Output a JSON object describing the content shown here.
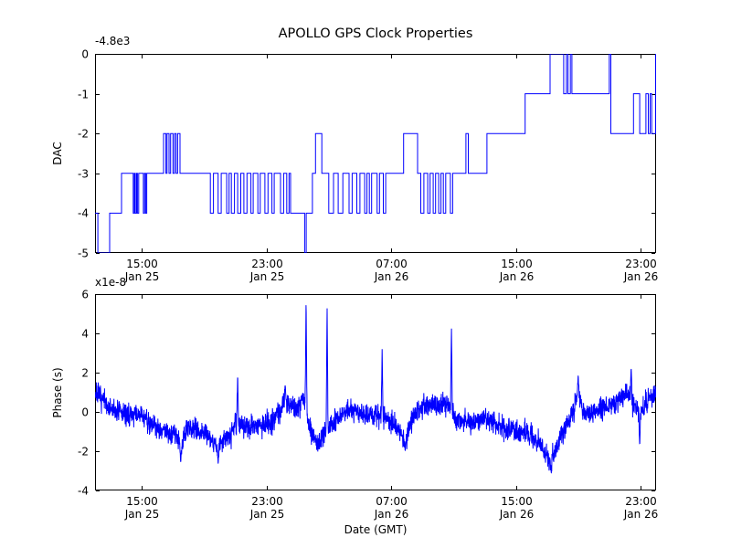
{
  "figure": {
    "background_color": "#ffffff",
    "axis_color": "#000000",
    "line_color": "#0000ff"
  },
  "chart_data": [
    {
      "id": "dac",
      "type": "line",
      "line_style": "step-post",
      "title": "APOLLO GPS Clock Properties",
      "ylabel": "DAC",
      "offset_text": "-4.8e3",
      "xlim": [
        0,
        36
      ],
      "ylim": [
        -5,
        0
      ],
      "grid": "off",
      "legend": "none",
      "yticks": [
        0,
        -1,
        -2,
        -3,
        -4,
        -5
      ],
      "xticks": [
        {
          "t": 3,
          "line1": "15:00",
          "line2": "Jan 25"
        },
        {
          "t": 11,
          "line1": "23:00",
          "line2": "Jan 25"
        },
        {
          "t": 19,
          "line1": "07:00",
          "line2": "Jan 26"
        },
        {
          "t": 27,
          "line1": "15:00",
          "line2": "Jan 26"
        },
        {
          "t": 35,
          "line1": "23:00",
          "line2": "Jan 26"
        }
      ],
      "x_unit": "hours since Jan 25 12:00 GMT",
      "steps": [
        [
          0,
          -4
        ],
        [
          0.18,
          -5
        ],
        [
          0.94,
          -4
        ],
        [
          1.7,
          -3
        ],
        [
          2.45,
          -4
        ],
        [
          2.52,
          -3
        ],
        [
          2.58,
          -4
        ],
        [
          2.66,
          -3
        ],
        [
          2.72,
          -4
        ],
        [
          2.8,
          -3
        ],
        [
          3.1,
          -4
        ],
        [
          3.18,
          -3
        ],
        [
          3.25,
          -4
        ],
        [
          3.32,
          -3
        ],
        [
          4.4,
          -2
        ],
        [
          4.55,
          -3
        ],
        [
          4.62,
          -2
        ],
        [
          4.75,
          -3
        ],
        [
          4.85,
          -2
        ],
        [
          5.0,
          -3
        ],
        [
          5.1,
          -2
        ],
        [
          5.2,
          -3
        ],
        [
          5.3,
          -2
        ],
        [
          5.45,
          -3
        ],
        [
          7.4,
          -4
        ],
        [
          7.6,
          -3
        ],
        [
          7.9,
          -4
        ],
        [
          8.1,
          -3
        ],
        [
          8.45,
          -4
        ],
        [
          8.6,
          -3
        ],
        [
          8.75,
          -4
        ],
        [
          8.95,
          -3
        ],
        [
          9.15,
          -4
        ],
        [
          9.35,
          -3
        ],
        [
          9.55,
          -4
        ],
        [
          9.75,
          -3
        ],
        [
          10.0,
          -4
        ],
        [
          10.15,
          -3
        ],
        [
          10.45,
          -4
        ],
        [
          10.6,
          -3
        ],
        [
          10.9,
          -4
        ],
        [
          11.1,
          -3
        ],
        [
          11.35,
          -4
        ],
        [
          11.5,
          -3
        ],
        [
          11.9,
          -4
        ],
        [
          12.1,
          -3
        ],
        [
          12.3,
          -4
        ],
        [
          12.45,
          -3
        ],
        [
          12.55,
          -4
        ],
        [
          13.45,
          -5
        ],
        [
          13.55,
          -4
        ],
        [
          13.95,
          -3
        ],
        [
          14.15,
          -2
        ],
        [
          14.55,
          -3
        ],
        [
          15.0,
          -4
        ],
        [
          15.3,
          -3
        ],
        [
          15.6,
          -4
        ],
        [
          15.9,
          -3
        ],
        [
          16.3,
          -4
        ],
        [
          16.5,
          -3
        ],
        [
          16.8,
          -4
        ],
        [
          17.0,
          -3
        ],
        [
          17.3,
          -4
        ],
        [
          17.45,
          -3
        ],
        [
          17.6,
          -4
        ],
        [
          17.75,
          -3
        ],
        [
          18.1,
          -4
        ],
        [
          18.25,
          -3
        ],
        [
          18.5,
          -4
        ],
        [
          18.65,
          -3
        ],
        [
          19.8,
          -2
        ],
        [
          20.7,
          -3
        ],
        [
          20.9,
          -4
        ],
        [
          21.1,
          -3
        ],
        [
          21.35,
          -4
        ],
        [
          21.5,
          -3
        ],
        [
          21.7,
          -4
        ],
        [
          21.85,
          -3
        ],
        [
          22.05,
          -4
        ],
        [
          22.2,
          -3
        ],
        [
          22.35,
          -4
        ],
        [
          22.5,
          -3
        ],
        [
          22.8,
          -4
        ],
        [
          22.95,
          -3
        ],
        [
          23.8,
          -2
        ],
        [
          23.95,
          -3
        ],
        [
          25.15,
          -2
        ],
        [
          27.6,
          -1
        ],
        [
          29.2,
          0
        ],
        [
          30.07,
          -1
        ],
        [
          30.25,
          0
        ],
        [
          30.35,
          -1
        ],
        [
          30.5,
          0
        ],
        [
          30.6,
          -1
        ],
        [
          33.0,
          0
        ],
        [
          33.1,
          -2
        ],
        [
          34.55,
          -1
        ],
        [
          34.95,
          -2
        ],
        [
          35.35,
          -1
        ],
        [
          35.5,
          -2
        ],
        [
          35.62,
          -1
        ],
        [
          35.72,
          -2
        ],
        [
          35.97,
          0
        ]
      ]
    },
    {
      "id": "phase",
      "type": "line",
      "ylabel": "Phase (s)",
      "xlabel": "Date (GMT)",
      "scale_text": "x1e-8",
      "xlim": [
        0,
        36
      ],
      "ylim": [
        -4,
        6
      ],
      "grid": "off",
      "legend": "none",
      "yticks": [
        6,
        4,
        2,
        0,
        -2,
        -4
      ],
      "xticks": [
        {
          "t": 3,
          "line1": "15:00",
          "line2": "Jan 25"
        },
        {
          "t": 11,
          "line1": "23:00",
          "line2": "Jan 25"
        },
        {
          "t": 19,
          "line1": "07:00",
          "line2": "Jan 26"
        },
        {
          "t": 27,
          "line1": "15:00",
          "line2": "Jan 26"
        },
        {
          "t": 35,
          "line1": "23:00",
          "line2": "Jan 26"
        }
      ],
      "x_unit": "hours since Jan 25 12:00 GMT",
      "y_unit": "1e-8 s",
      "mean_anchors": [
        [
          0,
          1.0
        ],
        [
          0.4,
          0.7
        ],
        [
          0.9,
          0.15
        ],
        [
          2.0,
          -0.1
        ],
        [
          3.0,
          -0.2
        ],
        [
          4.2,
          -0.9
        ],
        [
          5.2,
          -1.1
        ],
        [
          5.5,
          -1.7
        ],
        [
          5.9,
          -0.85
        ],
        [
          7.0,
          -1.0
        ],
        [
          7.9,
          -1.8
        ],
        [
          8.3,
          -1.4
        ],
        [
          8.7,
          -1.1
        ],
        [
          9.0,
          -0.6
        ],
        [
          10.0,
          -0.8
        ],
        [
          11.0,
          -0.6
        ],
        [
          11.5,
          -0.35
        ],
        [
          12.2,
          0.55
        ],
        [
          12.6,
          0.3
        ],
        [
          13.0,
          0.15
        ],
        [
          13.4,
          0.8
        ],
        [
          13.8,
          -0.9
        ],
        [
          14.3,
          -1.6
        ],
        [
          14.8,
          -1.0
        ],
        [
          15.3,
          -0.55
        ],
        [
          16.2,
          0.1
        ],
        [
          17.0,
          0.0
        ],
        [
          17.4,
          -0.1
        ],
        [
          18.3,
          -0.2
        ],
        [
          19.1,
          -0.5
        ],
        [
          19.9,
          -1.5
        ],
        [
          20.5,
          -0.1
        ],
        [
          21.3,
          0.35
        ],
        [
          22.6,
          0.45
        ],
        [
          23.2,
          -0.35
        ],
        [
          24.1,
          -0.6
        ],
        [
          25.0,
          -0.3
        ],
        [
          26.2,
          -0.8
        ],
        [
          27.6,
          -1.1
        ],
        [
          28.5,
          -1.5
        ],
        [
          29.25,
          -2.6
        ],
        [
          29.8,
          -1.4
        ],
        [
          30.5,
          -0.4
        ],
        [
          31.0,
          0.9
        ],
        [
          31.4,
          -0.1
        ],
        [
          32.3,
          0.1
        ],
        [
          33.2,
          0.35
        ],
        [
          34.2,
          1.1
        ],
        [
          34.9,
          -0.1
        ],
        [
          35.4,
          0.55
        ],
        [
          36,
          0.9
        ]
      ],
      "spikes": [
        [
          13.54,
          5.8
        ],
        [
          14.89,
          5.5
        ],
        [
          18.42,
          3.2
        ],
        [
          22.87,
          4.4
        ],
        [
          9.15,
          2.0
        ],
        [
          12.2,
          1.4
        ],
        [
          31.0,
          1.9
        ],
        [
          34.4,
          2.3
        ],
        [
          5.5,
          -2.6
        ],
        [
          7.9,
          -2.7
        ],
        [
          19.9,
          -2.0
        ],
        [
          29.27,
          -3.1
        ],
        [
          34.95,
          -1.8
        ]
      ],
      "noise_sd": 0.28,
      "noise_seed": 7
    }
  ]
}
